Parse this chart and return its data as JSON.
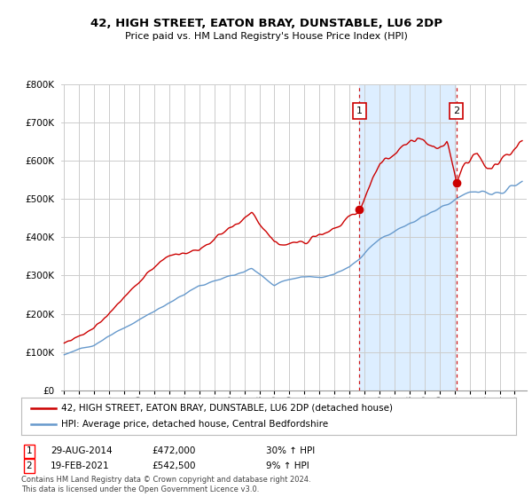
{
  "title": "42, HIGH STREET, EATON BRAY, DUNSTABLE, LU6 2DP",
  "subtitle": "Price paid vs. HM Land Registry's House Price Index (HPI)",
  "legend_line1": "42, HIGH STREET, EATON BRAY, DUNSTABLE, LU6 2DP (detached house)",
  "legend_line2": "HPI: Average price, detached house, Central Bedfordshire",
  "footer": "Contains HM Land Registry data © Crown copyright and database right 2024.\nThis data is licensed under the Open Government Licence v3.0.",
  "point1_date": "29-AUG-2014",
  "point1_price": "£472,000",
  "point1_hpi": "30% ↑ HPI",
  "point1_x": 2014.66,
  "point1_y": 472000,
  "point2_date": "19-FEB-2021",
  "point2_price": "£542,500",
  "point2_hpi": "9% ↑ HPI",
  "point2_x": 2021.13,
  "point2_y": 542500,
  "ylim": [
    0,
    800000
  ],
  "xlim_start": 1994.8,
  "xlim_end": 2025.8,
  "red_color": "#cc0000",
  "blue_color": "#6699cc",
  "shade_color": "#ddeeff",
  "grid_color": "#cccccc",
  "background_color": "#ffffff"
}
